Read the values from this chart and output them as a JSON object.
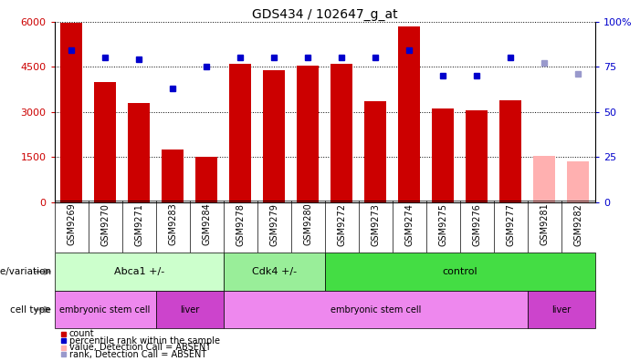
{
  "title": "GDS434 / 102647_g_at",
  "samples": [
    "GSM9269",
    "GSM9270",
    "GSM9271",
    "GSM9283",
    "GSM9284",
    "GSM9278",
    "GSM9279",
    "GSM9280",
    "GSM9272",
    "GSM9273",
    "GSM9274",
    "GSM9275",
    "GSM9276",
    "GSM9277",
    "GSM9281",
    "GSM9282"
  ],
  "counts": [
    5950,
    4000,
    3300,
    1750,
    1500,
    4600,
    4400,
    4550,
    4600,
    3350,
    5850,
    3100,
    3050,
    3400,
    1550,
    1350
  ],
  "absent": [
    false,
    false,
    false,
    false,
    false,
    false,
    false,
    false,
    false,
    false,
    false,
    false,
    false,
    false,
    true,
    true
  ],
  "ranks": [
    84,
    80,
    79,
    63,
    75,
    80,
    80,
    80,
    80,
    80,
    84,
    70,
    70,
    80,
    null,
    null
  ],
  "absent_ranks": [
    null,
    null,
    null,
    null,
    null,
    null,
    null,
    null,
    null,
    null,
    null,
    null,
    null,
    null,
    77,
    71
  ],
  "ylim_left": [
    0,
    6000
  ],
  "ylim_right": [
    0,
    100
  ],
  "yticks_left": [
    0,
    1500,
    3000,
    4500,
    6000
  ],
  "ytick_labels_left": [
    "0",
    "1500",
    "3000",
    "4500",
    "6000"
  ],
  "yticks_right": [
    0,
    25,
    50,
    75,
    100
  ],
  "ytick_labels_right": [
    "0",
    "25",
    "50",
    "75",
    "100%"
  ],
  "bar_color_normal": "#cc0000",
  "bar_color_absent": "#ffb0b0",
  "dot_color_normal": "#0000cc",
  "dot_color_absent": "#9999cc",
  "genotype_groups": [
    {
      "label": "Abca1 +/-",
      "start": 0,
      "end": 5,
      "color": "#ccffcc"
    },
    {
      "label": "Cdk4 +/-",
      "start": 5,
      "end": 8,
      "color": "#99ee99"
    },
    {
      "label": "control",
      "start": 8,
      "end": 16,
      "color": "#44dd44"
    }
  ],
  "celltype_groups": [
    {
      "label": "embryonic stem cell",
      "start": 0,
      "end": 3,
      "color": "#ee88ee"
    },
    {
      "label": "liver",
      "start": 3,
      "end": 5,
      "color": "#cc44cc"
    },
    {
      "label": "embryonic stem cell",
      "start": 5,
      "end": 14,
      "color": "#ee88ee"
    },
    {
      "label": "liver",
      "start": 14,
      "end": 16,
      "color": "#cc44cc"
    }
  ],
  "legend_items": [
    {
      "label": "count",
      "color": "#cc0000"
    },
    {
      "label": "percentile rank within the sample",
      "color": "#0000cc"
    },
    {
      "label": "value, Detection Call = ABSENT",
      "color": "#ffb0b0"
    },
    {
      "label": "rank, Detection Call = ABSENT",
      "color": "#9999cc"
    }
  ]
}
